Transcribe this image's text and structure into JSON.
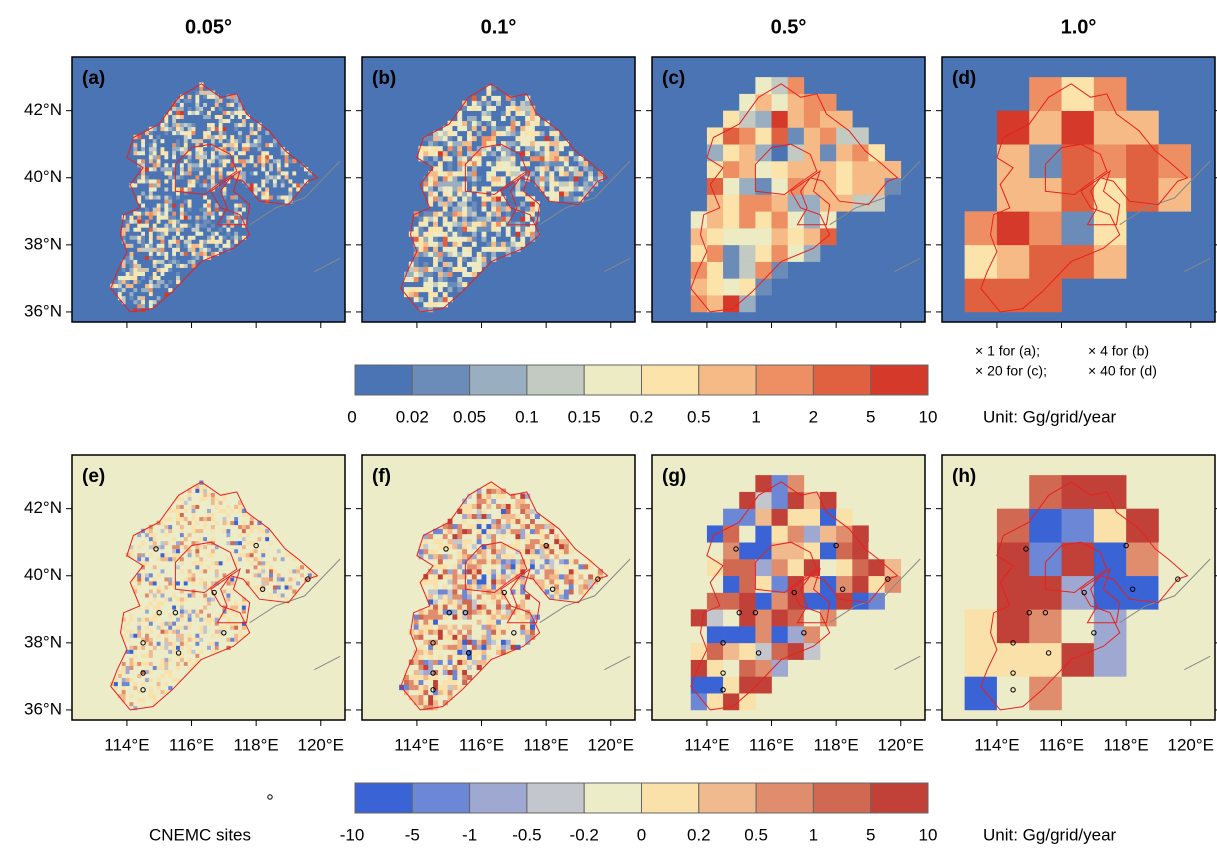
{
  "columns": [
    "0.05°",
    "0.1°",
    "0.5°",
    "1.0°"
  ],
  "panels": [
    "(a)",
    "(b)",
    "(c)",
    "(d)",
    "(e)",
    "(f)",
    "(g)",
    "(h)"
  ],
  "lat_ticks": [
    "42°N",
    "40°N",
    "38°N",
    "36°N"
  ],
  "lon_ticks": [
    "114°E",
    "116°E",
    "118°E",
    "120°E"
  ],
  "colorbar_top": {
    "colors": [
      "#4a74b4",
      "#6b8cb8",
      "#99afc1",
      "#c3cac2",
      "#ecebc3",
      "#fbe3a9",
      "#f6ba87",
      "#ee8e63",
      "#e0613f",
      "#d4392a"
    ],
    "ticks": [
      "0",
      "0.02",
      "0.05",
      "0.1",
      "0.15",
      "0.2",
      "0.5",
      "1",
      "2",
      "5",
      "10"
    ],
    "notes": [
      "× 1 for (a);",
      "× 4 for (b)",
      "× 20 for (c);",
      "× 40 for (d)"
    ],
    "unit": "Unit: Gg/grid/year"
  },
  "colorbar_bottom": {
    "colors": [
      "#3a63d5",
      "#6b87d6",
      "#9ea8d0",
      "#c3c6cc",
      "#ececc8",
      "#f9e1a9",
      "#f0b98e",
      "#e08d6e",
      "#d06852",
      "#c14038"
    ],
    "ticks": [
      "-10",
      "-5",
      "-1",
      "-0.5",
      "-0.2",
      "0",
      "0.2",
      "0.5",
      "1",
      "5",
      "10"
    ],
    "legend_label": "CNEMC sites",
    "unit": "Unit: Gg/grid/year"
  }
}
